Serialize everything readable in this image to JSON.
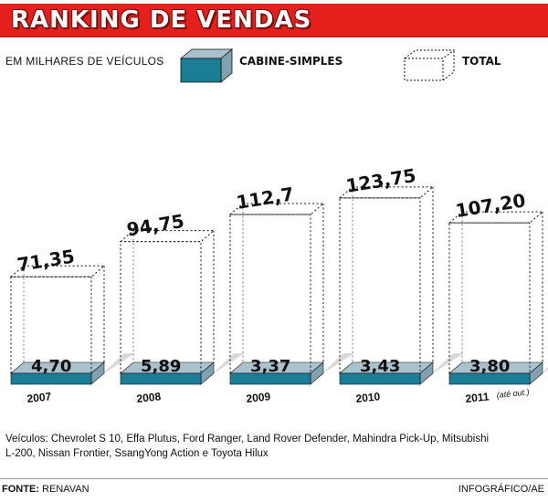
{
  "header": {
    "title": "RANKING DE VENDAS"
  },
  "chart_data": {
    "type": "bar",
    "title": "RANKING DE VENDAS",
    "subtitle": "EM MILHARES DE VEÍCULOS",
    "categories": [
      "2007",
      "2008",
      "2009",
      "2010",
      "2011"
    ],
    "category_notes": [
      "",
      "",
      "",
      "",
      "(até out.)"
    ],
    "series": [
      {
        "name": "CABINE-SIMPLES",
        "values": [
          4.7,
          5.89,
          3.37,
          3.43,
          3.8
        ],
        "labels": [
          "4,70",
          "5,89",
          "3,37",
          "3,43",
          "3,80"
        ]
      },
      {
        "name": "TOTAL",
        "values": [
          71.35,
          94.75,
          112.7,
          123.75,
          107.2
        ],
        "labels": [
          "71,35",
          "94,75",
          "112,7",
          "123,75",
          "107,20"
        ]
      }
    ],
    "ylim": [
      0,
      130
    ],
    "xlabel": "",
    "ylabel": "",
    "colors": {
      "cabine": "#1c7d96",
      "cabine_side": "#7fa1b0",
      "cabine_top": "#a9c2cd",
      "shadow": "#d9d9d9",
      "outline": "#111111"
    }
  },
  "legend": {
    "cabine_label": "CABINE-SIMPLES",
    "total_label": "TOTAL"
  },
  "notes": {
    "vehicles": "Veículos: Chevrolet S 10, Effa Plutus, Ford Ranger, Land Rover Defender, Mahindra Pick-Up, Mitsubishi L-200, Nissan Frontier, SsangYong Action e Toyota Hilux"
  },
  "footer": {
    "source_label": "FONTE:",
    "source_value": "RENAVAN",
    "credit": "INFOGRÁFICO/AE"
  },
  "colors": {
    "title_bg": "#e3201b"
  }
}
